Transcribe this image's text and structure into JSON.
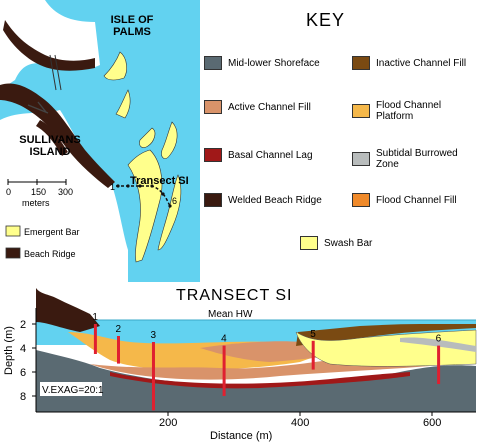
{
  "map": {
    "island_1": "ISLE OF PALMS",
    "island_2": "SULLIVANS ISLAND",
    "transect_label": "Transect SI",
    "point_start": "1",
    "point_end": "6",
    "scale": {
      "ticks": [
        "0",
        "150",
        "300"
      ],
      "unit": "meters"
    },
    "legend": [
      {
        "label": "Emergent Bar",
        "color": "#ffff8c"
      },
      {
        "label": "Beach Ridge",
        "color": "#3a1a10"
      }
    ]
  },
  "key": {
    "title": "KEY",
    "items": [
      {
        "label": "Mid-lower Shoreface",
        "color": "#5a6a72"
      },
      {
        "label": "Inactive Channel Fill",
        "color": "#7a4a12"
      },
      {
        "label": "Active Channel Fill",
        "color": "#d9936a"
      },
      {
        "label": "Flood Channel Platform",
        "color": "#f5b84a"
      },
      {
        "label": "Basal Channel Lag",
        "color": "#a01818"
      },
      {
        "label": "Subtidal Burrowed Zone",
        "color": "#b8bcbc"
      },
      {
        "label": "Welded Beach Ridge",
        "color": "#3a1a10"
      },
      {
        "label": "Flood Channel Fill",
        "color": "#f08a2a"
      },
      {
        "label": "Swash Bar",
        "color": "#ffff8c"
      }
    ]
  },
  "transect": {
    "title": "TRANSECT SI",
    "water_label": "Mean HW",
    "y_axis_label": "Depth (m)",
    "x_axis_label": "Distance (m)",
    "y_ticks": [
      "2",
      "4",
      "6",
      "8"
    ],
    "x_ticks": [
      "200",
      "400",
      "600"
    ],
    "exaggeration": "V.EXAG=20:1",
    "cores": [
      {
        "label": "1",
        "distance": 90,
        "top_depth": 2.0,
        "bottom_depth": 4.5
      },
      {
        "label": "2",
        "distance": 125,
        "top_depth": 3.0,
        "bottom_depth": 5.3
      },
      {
        "label": "3",
        "distance": 178,
        "top_depth": 3.5,
        "bottom_depth": 9.2
      },
      {
        "label": "4",
        "distance": 285,
        "top_depth": 3.8,
        "bottom_depth": 8.0
      },
      {
        "label": "5",
        "distance": 420,
        "top_depth": 3.4,
        "bottom_depth": 5.8
      },
      {
        "label": "6",
        "distance": 610,
        "top_depth": 3.8,
        "bottom_depth": 7.0
      }
    ]
  }
}
